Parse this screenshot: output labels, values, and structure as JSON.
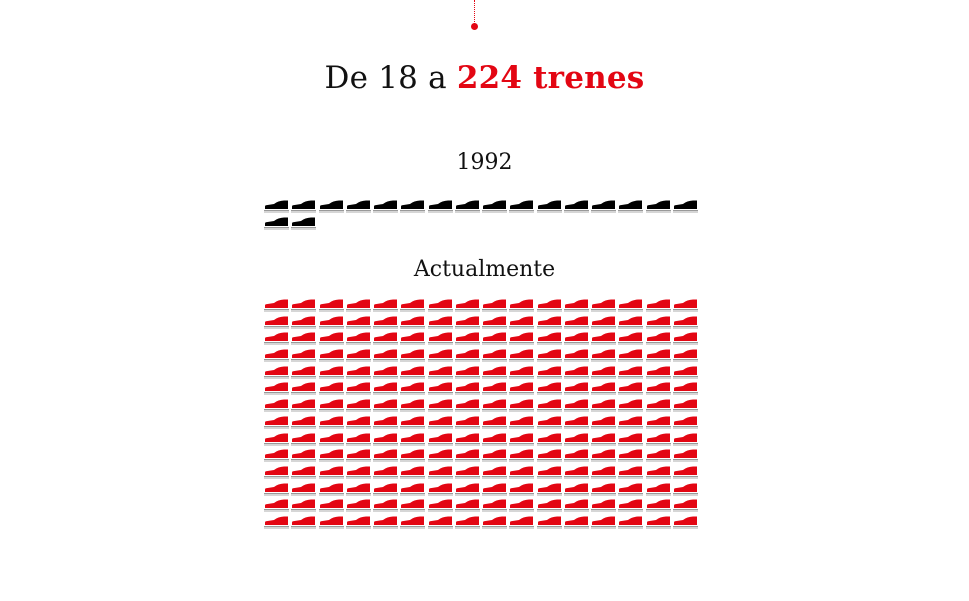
{
  "title": {
    "prefix": "De 18 a ",
    "highlight": "224 trenes"
  },
  "colors": {
    "accent": "#e30613",
    "train_1992": "#000000",
    "train_now": "#e30613",
    "rail": "#999999"
  },
  "icon": "train-icon",
  "chart_data": {
    "type": "pictogram",
    "title": "De 18 a 224 trenes",
    "unit": "trenes",
    "icons_per_row": 16,
    "groups": [
      {
        "label": "1992",
        "value": 18,
        "color": "#000000"
      },
      {
        "label": "Actualmente",
        "value": 224,
        "color": "#e30613"
      }
    ]
  }
}
